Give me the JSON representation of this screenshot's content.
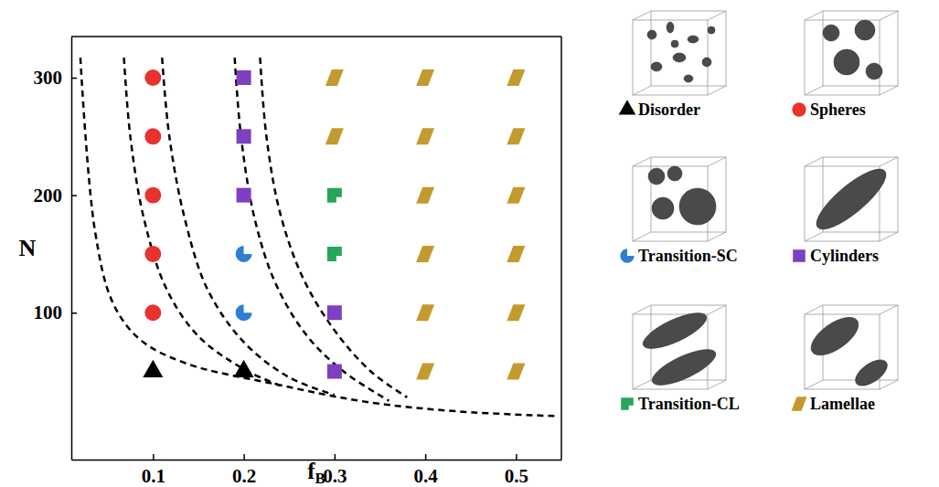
{
  "chart_data": {
    "type": "scatter",
    "xlabel": "fB",
    "ylabel": "N",
    "xlim": [
      0.01,
      0.55
    ],
    "ylim": [
      -25,
      335
    ],
    "xticks": [
      0.1,
      0.2,
      0.3,
      0.4,
      0.5
    ],
    "yticks": [
      100,
      200,
      300
    ],
    "legend": "right",
    "series": [
      {
        "name": "Disorder",
        "color": "#000000",
        "marker": "triangle",
        "x": [
          0.1,
          0.2
        ],
        "values": [
          50,
          50
        ]
      },
      {
        "name": "Spheres",
        "color": "#e8322c",
        "marker": "circle",
        "x": [
          0.1,
          0.1,
          0.1,
          0.1,
          0.1
        ],
        "values": [
          100,
          150,
          200,
          250,
          300
        ]
      },
      {
        "name": "Transition-SC",
        "color": "#2f7fd0",
        "marker": "pie",
        "x": [
          0.2,
          0.2
        ],
        "values": [
          100,
          150
        ]
      },
      {
        "name": "Cylinders",
        "color": "#7e3fc0",
        "marker": "square",
        "x": [
          0.2,
          0.2,
          0.2,
          0.3,
          0.3
        ],
        "values": [
          200,
          250,
          300,
          50,
          100
        ]
      },
      {
        "name": "Transition-CL",
        "color": "#27a55b",
        "marker": "notched-square",
        "x": [
          0.3,
          0.3
        ],
        "values": [
          150,
          200
        ]
      },
      {
        "name": "Lamellae",
        "color": "#c39a2e",
        "marker": "parallelogram",
        "x": [
          0.3,
          0.3,
          0.4,
          0.4,
          0.4,
          0.4,
          0.4,
          0.4,
          0.5,
          0.5,
          0.5,
          0.5,
          0.5,
          0.5
        ],
        "values": [
          250,
          300,
          50,
          100,
          150,
          200,
          250,
          300,
          50,
          100,
          150,
          200,
          250,
          300
        ]
      },
      {
        "type": "line",
        "line_style": "dashed",
        "color": "#000000",
        "x": [
          0.02,
          0.036,
          0.056,
          0.086,
          0.136,
          0.236,
          0.336,
          0.436,
          0.545
        ],
        "values": [
          317,
          170,
          108,
          77,
          57,
          39,
          24,
          16,
          12
        ]
      },
      {
        "type": "line",
        "line_style": "dashed",
        "color": "#000000",
        "x": [
          0.068,
          0.075,
          0.09,
          0.115,
          0.15,
          0.2,
          0.24
        ],
        "values": [
          317,
          250,
          180,
          120,
          80,
          52,
          38
        ]
      },
      {
        "type": "line",
        "line_style": "dashed",
        "color": "#000000",
        "x": [
          0.11,
          0.118,
          0.135,
          0.16,
          0.2,
          0.25,
          0.3
        ],
        "values": [
          317,
          250,
          180,
          120,
          75,
          45,
          30
        ]
      },
      {
        "type": "line",
        "line_style": "dashed",
        "color": "#000000",
        "x": [
          0.19,
          0.197,
          0.212,
          0.235,
          0.27,
          0.31,
          0.36
        ],
        "values": [
          317,
          250,
          180,
          125,
          80,
          50,
          25
        ]
      },
      {
        "type": "line",
        "line_style": "dashed",
        "color": "#000000",
        "x": [
          0.218,
          0.225,
          0.24,
          0.265,
          0.3,
          0.34,
          0.38
        ],
        "values": [
          317,
          250,
          185,
          130,
          85,
          50,
          28
        ]
      }
    ]
  }
}
